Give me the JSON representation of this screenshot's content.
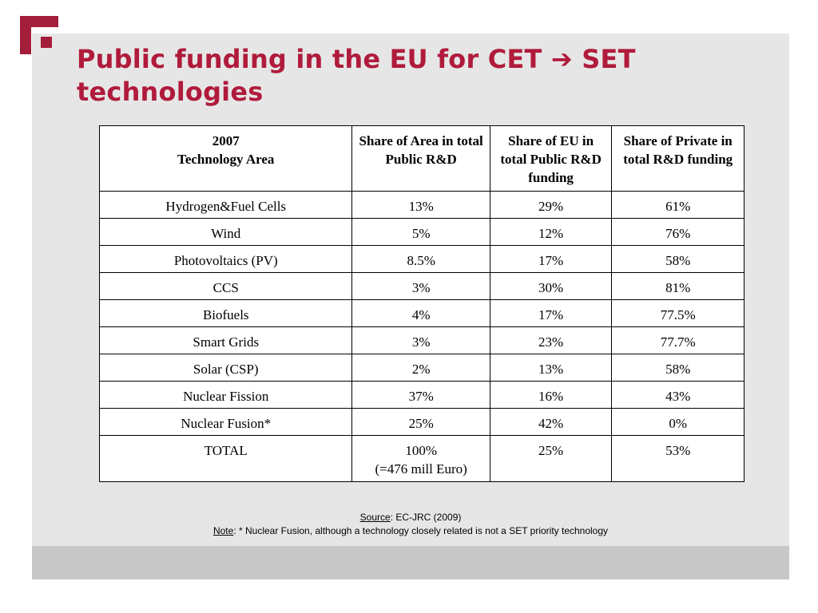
{
  "slide": {
    "title": "Public funding in the EU for CET ➔ SET technologies",
    "title_color": "#b01b3c",
    "logo_color": "#a41d3b"
  },
  "table": {
    "headers": [
      [
        "2007",
        "Technology Area"
      ],
      [
        "Share of Area in total Public R&D"
      ],
      [
        "Share of EU in total Public R&D funding"
      ],
      [
        "Share of Private in total R&D funding"
      ]
    ],
    "rows": [
      [
        "Hydrogen&Fuel Cells",
        "13%",
        "29%",
        "61%"
      ],
      [
        "Wind",
        "5%",
        "12%",
        "76%"
      ],
      [
        "Photovoltaics (PV)",
        "8.5%",
        "17%",
        "58%"
      ],
      [
        "CCS",
        "3%",
        "30%",
        "81%"
      ],
      [
        "Biofuels",
        "4%",
        "17%",
        "77.5%"
      ],
      [
        "Smart Grids",
        "3%",
        "23%",
        "77.7%"
      ],
      [
        "Solar (CSP)",
        "2%",
        "13%",
        "58%"
      ],
      [
        "Nuclear Fission",
        "37%",
        "16%",
        "43%"
      ],
      [
        "Nuclear Fusion*",
        "25%",
        "42%",
        "0%"
      ]
    ],
    "total_row": {
      "label": "TOTAL",
      "area": [
        "100%",
        "(=476 mill Euro)"
      ],
      "eu": "25%",
      "private": "53%"
    }
  },
  "footer": {
    "source_label": "Source",
    "source_text": ":  EC-JRC (2009)",
    "note_label": "Note",
    "note_text": ": * Nuclear Fusion, although a technology closely related is not a SET priority technology"
  }
}
